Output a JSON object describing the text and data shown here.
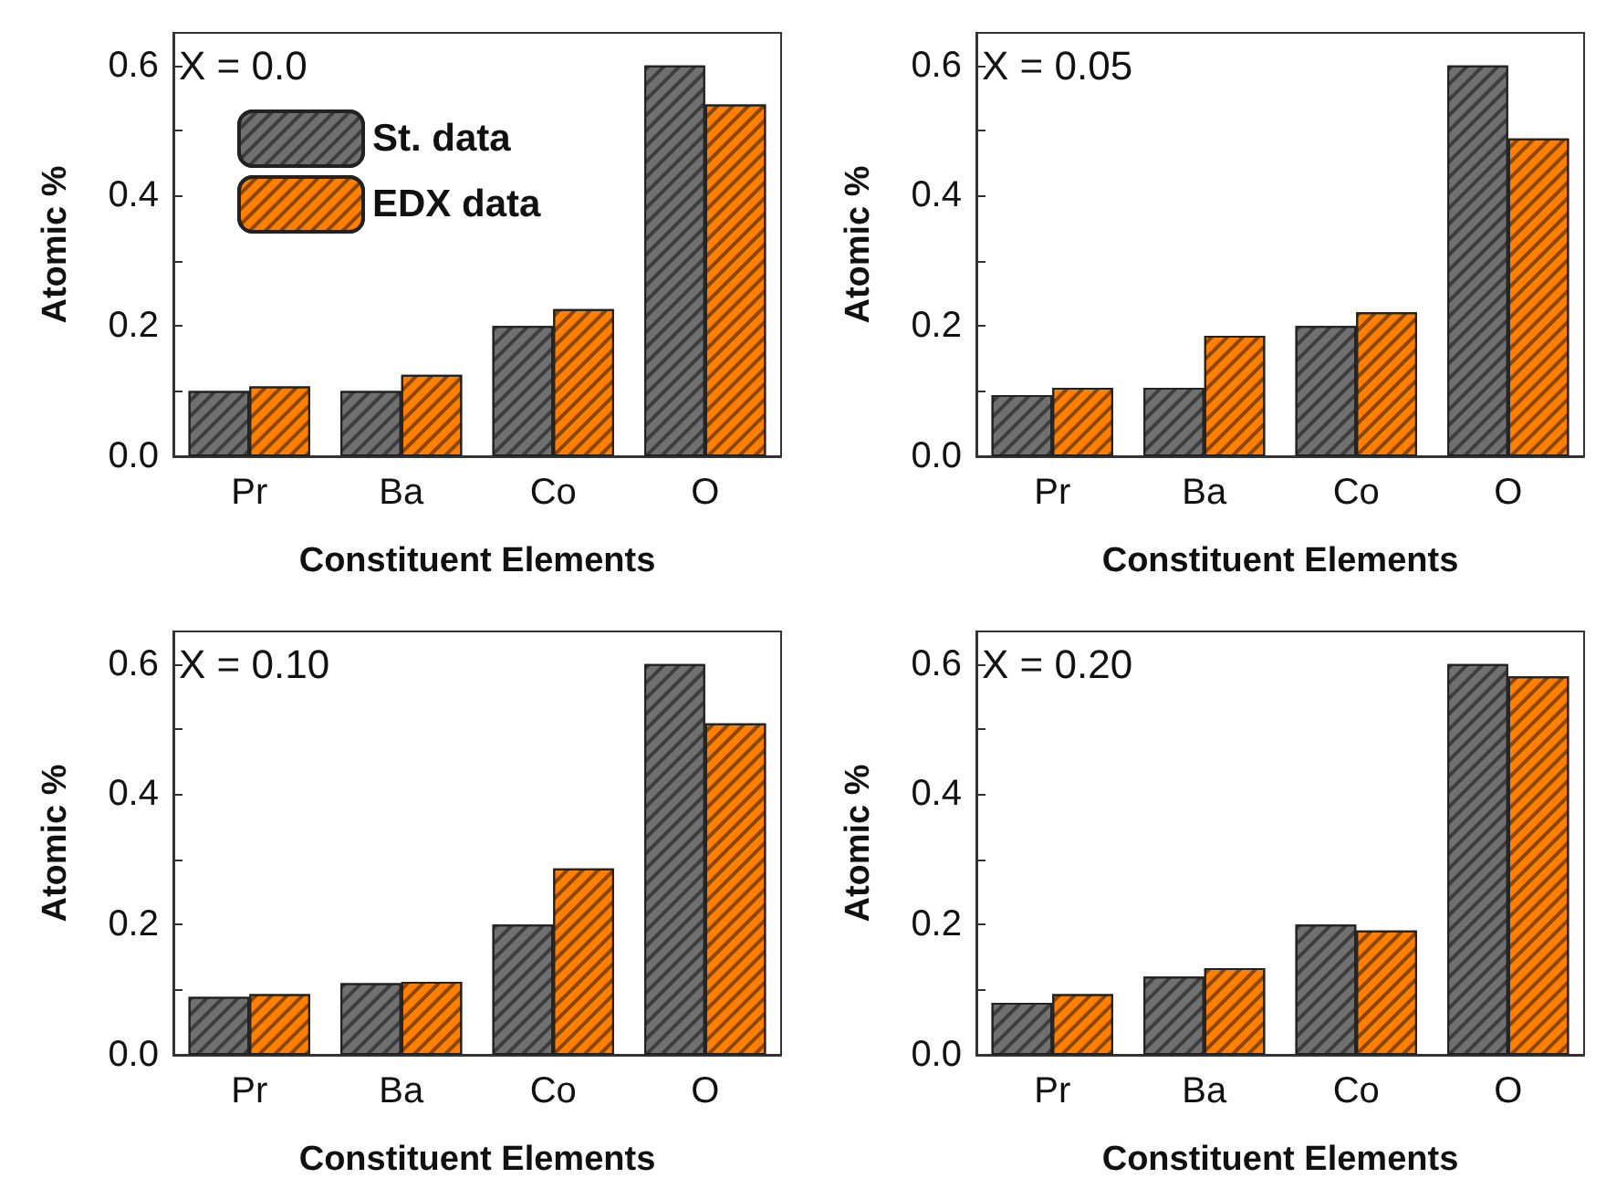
{
  "chart_data": [
    {
      "type": "bar",
      "title": "X = 0.0",
      "xlabel": "Constituent Elements",
      "ylabel": "Atomic %",
      "categories": [
        "Pr",
        "Ba",
        "Co",
        "O"
      ],
      "legend": "top left",
      "series": [
        {
          "name": "St. data",
          "color": "#707070",
          "values": [
            0.1,
            0.1,
            0.2,
            0.6
          ]
        },
        {
          "name": "EDX data",
          "color": "#ff8000",
          "values": [
            0.107,
            0.125,
            0.226,
            0.54
          ]
        }
      ],
      "ylim": [
        0,
        0.65
      ],
      "yticks": [
        {
          "value": 0,
          "label": "0.0"
        },
        {
          "value": 0.1,
          "label": null
        },
        {
          "value": 0.2,
          "label": "0.2"
        },
        {
          "value": 0.3,
          "label": null
        },
        {
          "value": 0.4,
          "label": "0.4"
        },
        {
          "value": 0.5,
          "label": null
        },
        {
          "value": 0.6,
          "label": "0.6"
        }
      ]
    },
    {
      "type": "bar",
      "title": "X = 0.05",
      "xlabel": "Constituent Elements",
      "ylabel": "Atomic %",
      "categories": [
        "Pr",
        "Ba",
        "Co",
        "O"
      ],
      "series": [
        {
          "color": "#707070",
          "values": [
            0.094,
            0.105,
            0.2,
            0.6
          ]
        },
        {
          "color": "#ff8000",
          "values": [
            0.105,
            0.185,
            0.221,
            0.488
          ]
        }
      ],
      "ylim": [
        0,
        0.65
      ],
      "yticks": [
        {
          "value": 0,
          "label": "0.0"
        },
        {
          "value": 0.1,
          "label": null
        },
        {
          "value": 0.2,
          "label": "0.2"
        },
        {
          "value": 0.3,
          "label": null
        },
        {
          "value": 0.4,
          "label": "0.4"
        },
        {
          "value": 0.5,
          "label": null
        },
        {
          "value": 0.6,
          "label": "0.6"
        }
      ]
    },
    {
      "type": "bar",
      "title": "X = 0.10",
      "xlabel": "Constituent Elements",
      "ylabel": "Atomic %",
      "categories": [
        "Pr",
        "Ba",
        "Co",
        "O"
      ],
      "series": [
        {
          "color": "#707070",
          "values": [
            0.089,
            0.11,
            0.2,
            0.6
          ]
        },
        {
          "color": "#ff8000",
          "values": [
            0.093,
            0.112,
            0.286,
            0.509
          ]
        }
      ],
      "ylim": [
        0,
        0.65
      ],
      "yticks": [
        {
          "value": 0,
          "label": "0.0"
        },
        {
          "value": 0.1,
          "label": null
        },
        {
          "value": 0.2,
          "label": "0.2"
        },
        {
          "value": 0.3,
          "label": null
        },
        {
          "value": 0.4,
          "label": "0.4"
        },
        {
          "value": 0.5,
          "label": null
        },
        {
          "value": 0.6,
          "label": "0.6"
        }
      ]
    },
    {
      "type": "bar",
      "title": "X = 0.20",
      "xlabel": "Constituent Elements",
      "ylabel": "Atomic %",
      "categories": [
        "Pr",
        "Ba",
        "Co",
        "O"
      ],
      "series": [
        {
          "color": "#707070",
          "values": [
            0.08,
            0.12,
            0.2,
            0.6
          ]
        },
        {
          "color": "#ff8000",
          "values": [
            0.093,
            0.133,
            0.191,
            0.581
          ]
        }
      ],
      "ylim": [
        0,
        0.65
      ],
      "yticks": [
        {
          "value": 0,
          "label": "0.0"
        },
        {
          "value": 0.1,
          "label": null
        },
        {
          "value": 0.2,
          "label": "0.2"
        },
        {
          "value": 0.3,
          "label": null
        },
        {
          "value": 0.4,
          "label": "0.4"
        },
        {
          "value": 0.5,
          "label": null
        },
        {
          "value": 0.6,
          "label": "0.6"
        }
      ]
    }
  ]
}
